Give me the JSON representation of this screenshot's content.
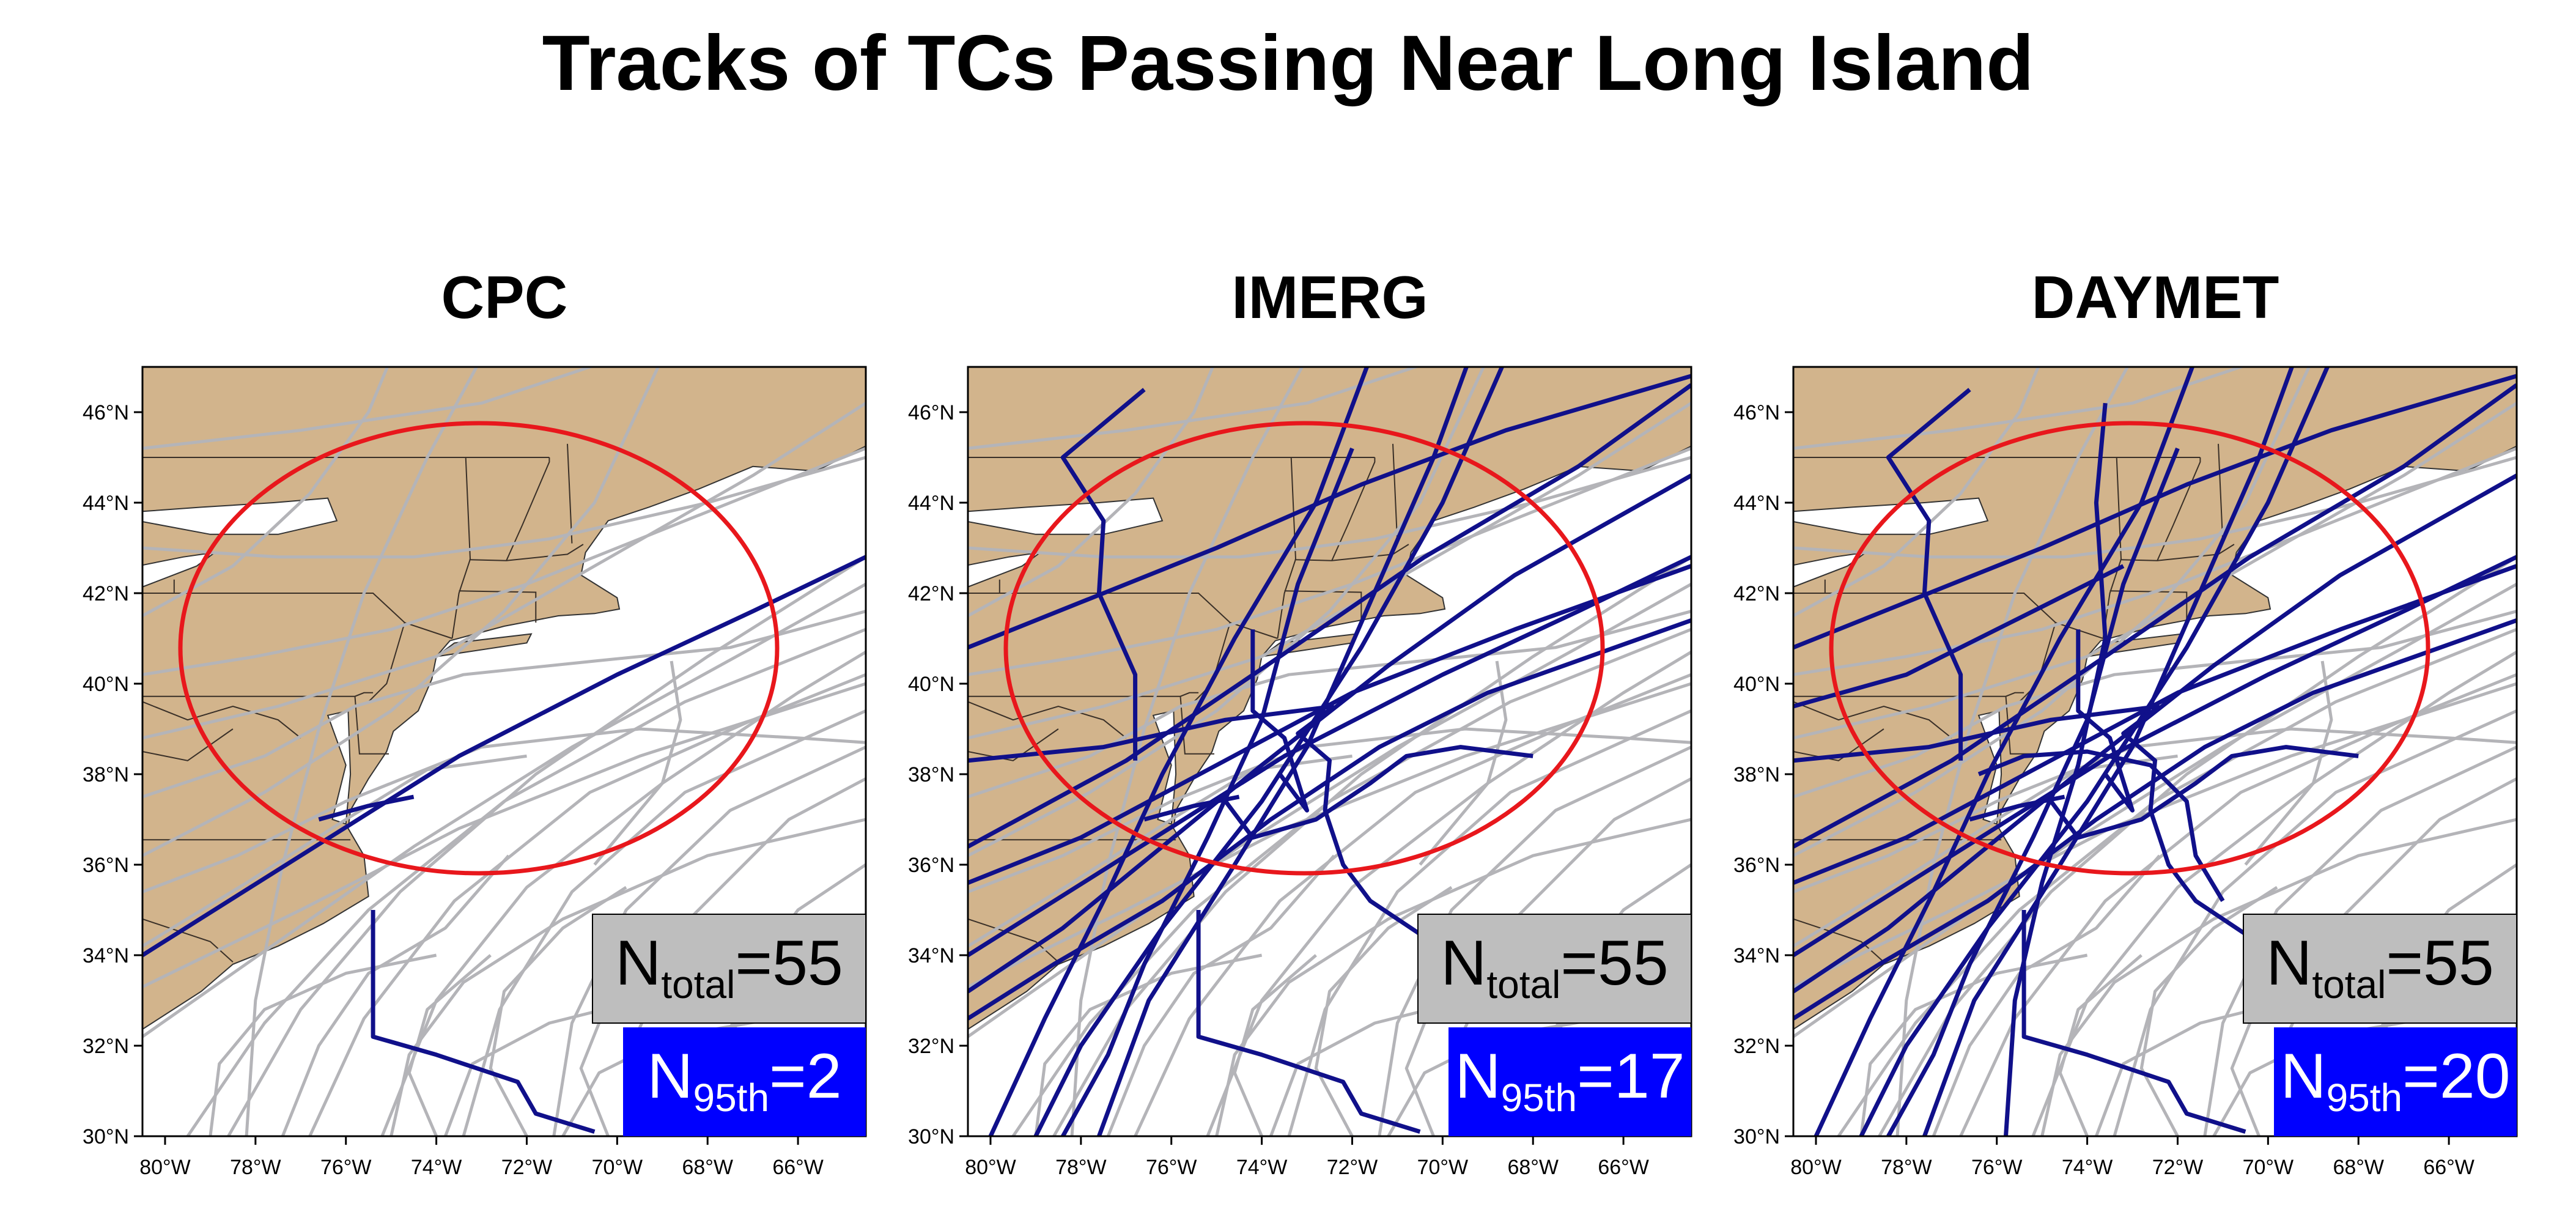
{
  "title": "Tracks of TCs Passing Near Long Island",
  "colors": {
    "land": "#d2b48c",
    "water": "#ffffff",
    "background_track": "#b4b4b8",
    "highlight_track": "#10108a",
    "circle": "#e8171c",
    "total_box": "#bebebe",
    "count_box": "#0000ff"
  },
  "axes": {
    "lon_ticks": [
      "80°W",
      "78°W",
      "76°W",
      "74°W",
      "72°W",
      "70°W",
      "68°W",
      "66°W"
    ],
    "lat_ticks": [
      "46°N",
      "44°N",
      "42°N",
      "40°N",
      "38°N",
      "36°N",
      "34°N",
      "32°N",
      "30°N"
    ]
  },
  "panels": [
    {
      "name": "CPC",
      "total_label": "N",
      "total_sub": "total",
      "total_value": "=55",
      "count_label": "N",
      "count_sub": "95th",
      "count_value": "=2",
      "highlighted_tracks": 2
    },
    {
      "name": "IMERG",
      "total_label": "N",
      "total_sub": "total",
      "total_value": "=55",
      "count_label": "N",
      "count_sub": "95th",
      "count_value": "=17",
      "highlighted_tracks": 17
    },
    {
      "name": "DAYMET",
      "total_label": "N",
      "total_sub": "total",
      "total_value": "=55",
      "count_label": "N",
      "count_sub": "95th",
      "count_value": "=20",
      "highlighted_tracks": 20
    }
  ]
}
